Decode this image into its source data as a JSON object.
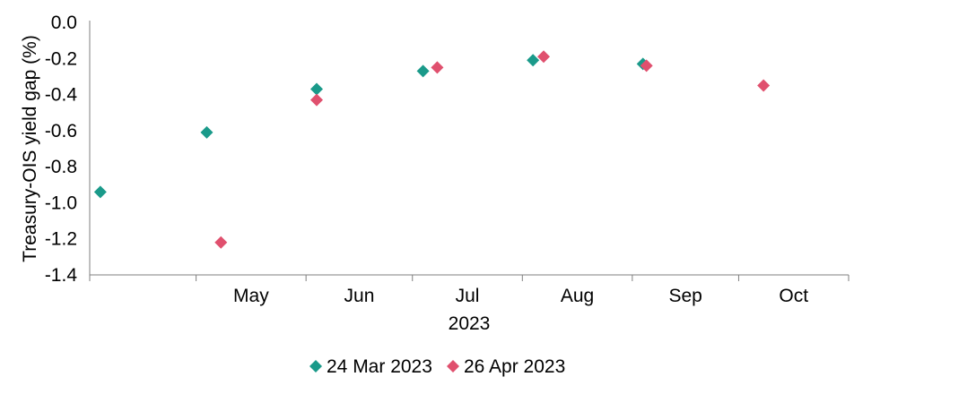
{
  "chart_data": {
    "type": "scatter",
    "title": "",
    "ylabel": "Treasury-OIS yield gap (%)",
    "xlabel": "2023",
    "x_ticks": [
      "May",
      "Jun",
      "Jul",
      "Aug",
      "Sep",
      "Oct"
    ],
    "y_ticks": [
      "0.0",
      "-0.2",
      "-0.4",
      "-0.6",
      "-0.8",
      "-1.0",
      "-1.2",
      "-1.4"
    ],
    "ylim": [
      -1.4,
      0.0
    ],
    "grid": false,
    "legend_position": "bottom",
    "series": [
      {
        "name": "24 Mar 2023",
        "color": "#1a9a8a",
        "marker": "diamond",
        "points": [
          {
            "x": "2023-04-04",
            "y": -0.94
          },
          {
            "x": "2023-05-04",
            "y": -0.61
          },
          {
            "x": "2023-06-04",
            "y": -0.37
          },
          {
            "x": "2023-07-04",
            "y": -0.27
          },
          {
            "x": "2023-08-04",
            "y": -0.21
          },
          {
            "x": "2023-09-04",
            "y": -0.23
          }
        ]
      },
      {
        "name": "26 Apr 2023",
        "color": "#e0506e",
        "marker": "diamond",
        "points": [
          {
            "x": "2023-05-08",
            "y": -1.22
          },
          {
            "x": "2023-06-04",
            "y": -0.43
          },
          {
            "x": "2023-07-08",
            "y": -0.25
          },
          {
            "x": "2023-08-07",
            "y": -0.19
          },
          {
            "x": "2023-09-05",
            "y": -0.24
          },
          {
            "x": "2023-10-08",
            "y": -0.35
          }
        ]
      }
    ]
  }
}
